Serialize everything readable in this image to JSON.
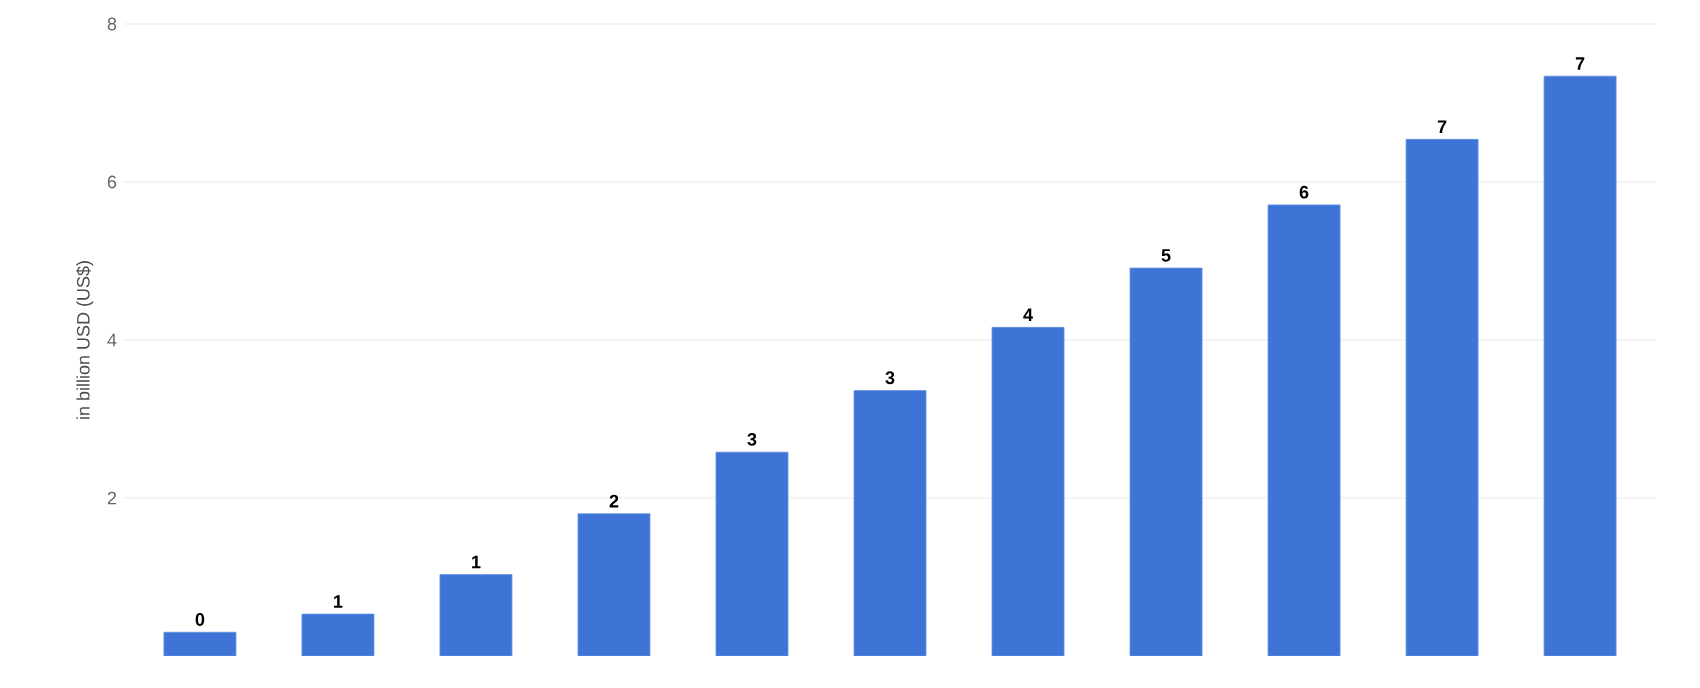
{
  "chart_data": {
    "type": "bar",
    "ylabel": "in billion USD (US$)",
    "categories": [
      null,
      null,
      null,
      null,
      null,
      null,
      null,
      null,
      null,
      null,
      null
    ],
    "values": [
      0.3,
      0.53,
      1.03,
      1.8,
      2.58,
      3.36,
      4.16,
      4.91,
      5.71,
      6.54,
      7.34
    ],
    "value_labels": [
      "0",
      "1",
      "1",
      "2",
      "3",
      "3",
      "4",
      "5",
      "6",
      "7",
      "7"
    ],
    "color": "#3e74d6",
    "ylim": [
      0,
      8
    ],
    "yticks": [
      2,
      4,
      6,
      8
    ],
    "grid": "y",
    "tick_labels": "y"
  }
}
